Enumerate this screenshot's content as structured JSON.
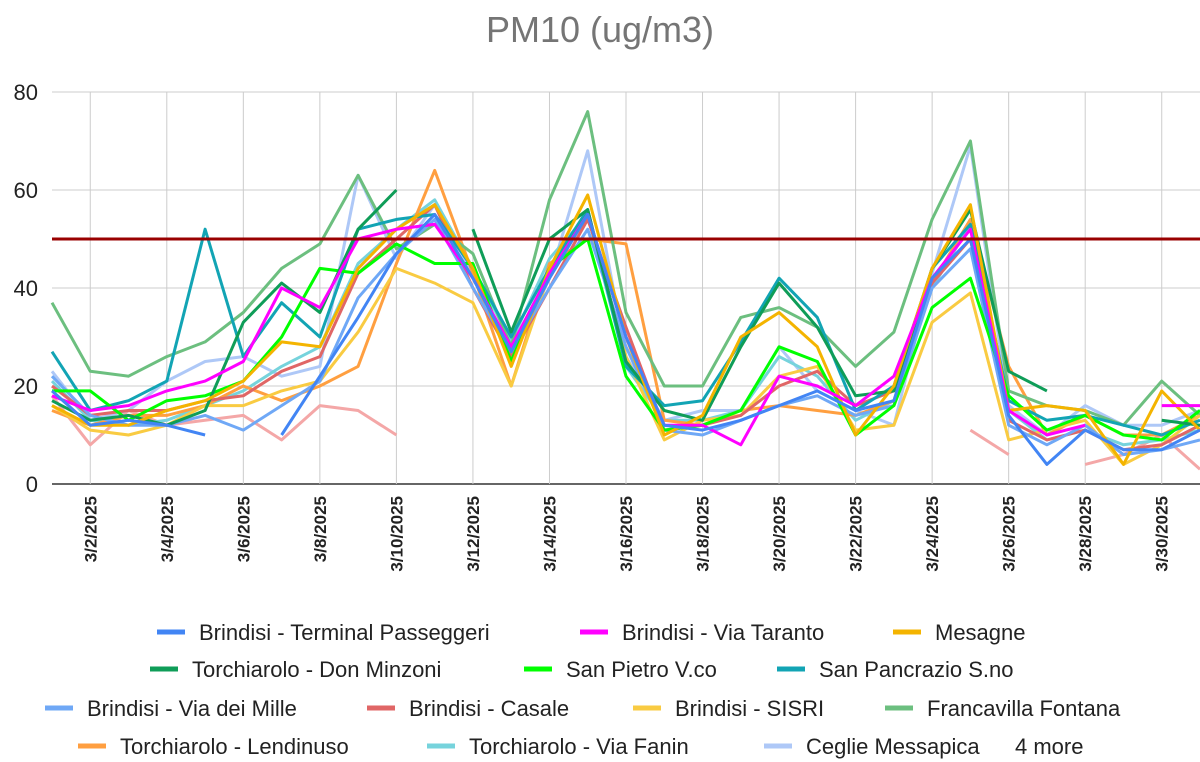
{
  "chart_data": {
    "type": "line",
    "title": "PM10 (ug/m3)",
    "categories": [
      null,
      "3/2/2025",
      null,
      "3/4/2025",
      null,
      "3/6/2025",
      null,
      "3/8/2025",
      null,
      "3/10/2025",
      null,
      "3/12/2025",
      null,
      "3/14/2025",
      null,
      "3/16/2025",
      null,
      "3/18/2025",
      null,
      "3/20/2025",
      null,
      "3/22/2025",
      null,
      "3/24/2025",
      null,
      "3/26/2025",
      null,
      "3/28/2025",
      null,
      "3/30/2025",
      null
    ],
    "ylim": [
      0,
      80
    ],
    "yticks": [
      0,
      20,
      40,
      60,
      80
    ],
    "grid": true,
    "reference_line": {
      "value": 50,
      "color": "#990000"
    },
    "legend_more": "4 more",
    "series": [
      {
        "name": "Brindisi - Terminal Passeggeri",
        "color": "#4285f4",
        "values": [
          19,
          12,
          13,
          12,
          10,
          null,
          10,
          22,
          34,
          47,
          55,
          42,
          27,
          42,
          55,
          30,
          12,
          11,
          13,
          16,
          19,
          15,
          17,
          42,
          50,
          14,
          4,
          11,
          7,
          7,
          11
        ]
      },
      {
        "name": "Brindisi - Via Taranto",
        "color": "#ff00ff",
        "values": [
          18,
          15,
          16,
          19,
          21,
          25,
          40,
          36,
          50,
          52,
          53,
          42,
          28,
          43,
          55,
          30,
          12,
          12,
          8,
          22,
          20,
          16,
          22,
          42,
          52,
          15,
          10,
          12,
          null,
          16,
          16
        ]
      },
      {
        "name": "Mesagne",
        "color": "#f4b400",
        "values": [
          16,
          12,
          12,
          15,
          17,
          21,
          29,
          28,
          44,
          52,
          57,
          44,
          24,
          44,
          59,
          30,
          10,
          14,
          30,
          35,
          28,
          10,
          20,
          44,
          57,
          15,
          16,
          15,
          4,
          19,
          11
        ]
      },
      {
        "name": "Torchiarolo - Don Minzoni",
        "color": "#0f9d58",
        "values": [
          17,
          13,
          14,
          12,
          15,
          33,
          41,
          35,
          52,
          60,
          null,
          52,
          31,
          50,
          56,
          25,
          15,
          13,
          28,
          41,
          32,
          18,
          19,
          44,
          56,
          23,
          19,
          null,
          null,
          13,
          12
        ]
      },
      {
        "name": "San Pietro V.co",
        "color": "#00ff00",
        "values": [
          19,
          19,
          13,
          17,
          18,
          21,
          30,
          44,
          43,
          49,
          45,
          45,
          25,
          44,
          50,
          22,
          11,
          12,
          15,
          28,
          25,
          10,
          16,
          36,
          42,
          18,
          11,
          14,
          10,
          9,
          15
        ]
      },
      {
        "name": "San Pancrazio S.no",
        "color": "#12a4b4",
        "values": [
          27,
          15,
          17,
          21,
          52,
          26,
          37,
          30,
          52,
          54,
          55,
          44,
          30,
          44,
          56,
          24,
          16,
          17,
          29,
          42,
          34,
          15,
          20,
          44,
          53,
          17,
          13,
          14,
          12,
          10,
          13
        ]
      },
      {
        "name": "Brindisi - Via dei Mille",
        "color": "#6fa8f6",
        "values": [
          22,
          14,
          12,
          12,
          14,
          11,
          16,
          21,
          38,
          47,
          54,
          40,
          27,
          40,
          52,
          28,
          11,
          10,
          13,
          16,
          18,
          14,
          16,
          40,
          48,
          12,
          8,
          12,
          6,
          7,
          9
        ]
      },
      {
        "name": "Brindisi - Casale",
        "color": "#e06666",
        "values": [
          20,
          14,
          15,
          15,
          17,
          18,
          23,
          26,
          43,
          50,
          57,
          40,
          26,
          40,
          54,
          32,
          11,
          12,
          14,
          20,
          23,
          16,
          19,
          41,
          50,
          13,
          9,
          11,
          7,
          8,
          12
        ]
      },
      {
        "name": "Brindisi - SISRI",
        "color": "#f9cb42",
        "values": [
          16,
          11,
          10,
          12,
          16,
          16,
          19,
          21,
          31,
          44,
          41,
          37,
          20,
          43,
          55,
          26,
          9,
          13,
          14,
          22,
          24,
          11,
          12,
          33,
          39,
          9,
          11,
          13,
          4,
          8,
          14
        ]
      },
      {
        "name": "Francavilla Fontana",
        "color": "#6cbf7f",
        "values": [
          37,
          23,
          22,
          26,
          29,
          35,
          44,
          49,
          63,
          48,
          53,
          47,
          28,
          58,
          76,
          35,
          20,
          20,
          34,
          36,
          32,
          24,
          31,
          54,
          70,
          19,
          16,
          15,
          12,
          21,
          14
        ]
      },
      {
        "name": "Torchiarolo - Lendinuso",
        "color": "#ff9f40",
        "values": [
          15,
          12,
          14,
          14,
          16,
          20,
          17,
          20,
          24,
          45,
          64,
          43,
          20,
          45,
          50,
          49,
          13,
          12,
          15,
          16,
          15,
          14,
          17,
          41,
          54,
          24,
          10,
          14,
          10,
          10,
          14
        ]
      },
      {
        "name": "Torchiarolo - Via Fanin",
        "color": "#76d3dc",
        "values": [
          21,
          13,
          12,
          13,
          16,
          19,
          24,
          28,
          45,
          52,
          58,
          44,
          29,
          46,
          55,
          24,
          13,
          13,
          15,
          26,
          22,
          13,
          17,
          40,
          53,
          15,
          9,
          11,
          8,
          9,
          11
        ]
      },
      {
        "name": "Ceglie Messapica",
        "color": "#aec8f7",
        "values": [
          23,
          13,
          15,
          21,
          25,
          26,
          22,
          24,
          63,
          46,
          57,
          43,
          25,
          42,
          68,
          26,
          13,
          15,
          15,
          28,
          19,
          15,
          12,
          43,
          69,
          16,
          10,
          16,
          12,
          12,
          15
        ]
      },
      {
        "color": "#f4a7a7",
        "values": [
          18,
          8,
          15,
          12,
          13,
          14,
          9,
          16,
          15,
          10,
          null,
          null,
          null,
          null,
          null,
          null,
          null,
          null,
          null,
          null,
          null,
          null,
          null,
          null,
          11,
          6,
          null,
          4,
          6,
          10,
          3
        ]
      }
    ]
  }
}
